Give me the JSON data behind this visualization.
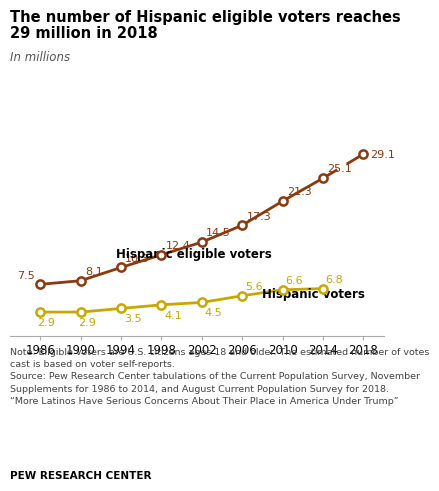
{
  "years": [
    1986,
    1990,
    1994,
    1998,
    2002,
    2006,
    2010,
    2014,
    2018
  ],
  "eligible_voters": [
    7.5,
    8.1,
    10.3,
    12.4,
    14.5,
    17.3,
    21.3,
    25.1,
    29.1
  ],
  "actual_voters": [
    2.9,
    2.9,
    3.5,
    4.1,
    4.5,
    5.6,
    6.6,
    6.8,
    null
  ],
  "eligible_color": "#8B3A0F",
  "voters_color": "#C8A800",
  "title_line1": "The number of Hispanic eligible voters reaches",
  "title_line2": "29 million in 2018",
  "subtitle": "In millions",
  "label_eligible": "Hispanic eligible voters",
  "label_voters": "Hispanic voters",
  "note_text": "Note: Eligible voters are U.S. citizens ages 18 and older. The estimated number of votes\ncast is based on voter self-reports.\nSource: Pew Research Center tabulations of the Current Population Survey, November\nSupplements for 1986 to 2014, and August Current Population Survey for 2018.\n“More Latinos Have Serious Concerns About Their Place in America Under Trump”",
  "footer": "PEW RESEARCH CENTER",
  "xlim": [
    1983,
    2020
  ],
  "ylim": [
    -1,
    33
  ]
}
